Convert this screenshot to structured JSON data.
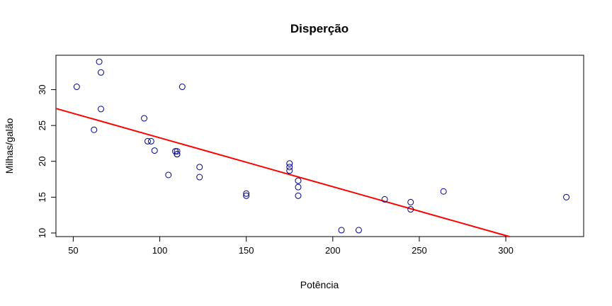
{
  "chart_data": {
    "type": "scatter",
    "title": "Disperção",
    "xlabel": "Potência",
    "ylabel": "Milhas/galão",
    "xlim": [
      40,
      345
    ],
    "ylim": [
      9.5,
      34.8
    ],
    "xticks": [
      50,
      100,
      150,
      200,
      250,
      300
    ],
    "yticks": [
      10,
      15,
      20,
      25,
      30
    ],
    "grid": false,
    "point_color": "#00008B",
    "line_color": "#FF0000",
    "points": [
      {
        "x": 110,
        "y": 21.0
      },
      {
        "x": 110,
        "y": 21.0
      },
      {
        "x": 93,
        "y": 22.8
      },
      {
        "x": 110,
        "y": 21.4
      },
      {
        "x": 175,
        "y": 18.7
      },
      {
        "x": 105,
        "y": 18.1
      },
      {
        "x": 245,
        "y": 14.3
      },
      {
        "x": 62,
        "y": 24.4
      },
      {
        "x": 95,
        "y": 22.8
      },
      {
        "x": 123,
        "y": 19.2
      },
      {
        "x": 123,
        "y": 17.8
      },
      {
        "x": 180,
        "y": 16.4
      },
      {
        "x": 180,
        "y": 17.3
      },
      {
        "x": 180,
        "y": 15.2
      },
      {
        "x": 205,
        "y": 10.4
      },
      {
        "x": 215,
        "y": 10.4
      },
      {
        "x": 230,
        "y": 14.7
      },
      {
        "x": 66,
        "y": 32.4
      },
      {
        "x": 52,
        "y": 30.4
      },
      {
        "x": 65,
        "y": 33.9
      },
      {
        "x": 97,
        "y": 21.5
      },
      {
        "x": 150,
        "y": 15.5
      },
      {
        "x": 150,
        "y": 15.2
      },
      {
        "x": 245,
        "y": 13.3
      },
      {
        "x": 175,
        "y": 19.2
      },
      {
        "x": 66,
        "y": 27.3
      },
      {
        "x": 91,
        "y": 26.0
      },
      {
        "x": 113,
        "y": 30.4
      },
      {
        "x": 264,
        "y": 15.8
      },
      {
        "x": 175,
        "y": 19.7
      },
      {
        "x": 335,
        "y": 15.0
      },
      {
        "x": 109,
        "y": 21.4
      }
    ],
    "regression_line": {
      "intercept": 30.1,
      "slope": -0.0682
    }
  }
}
